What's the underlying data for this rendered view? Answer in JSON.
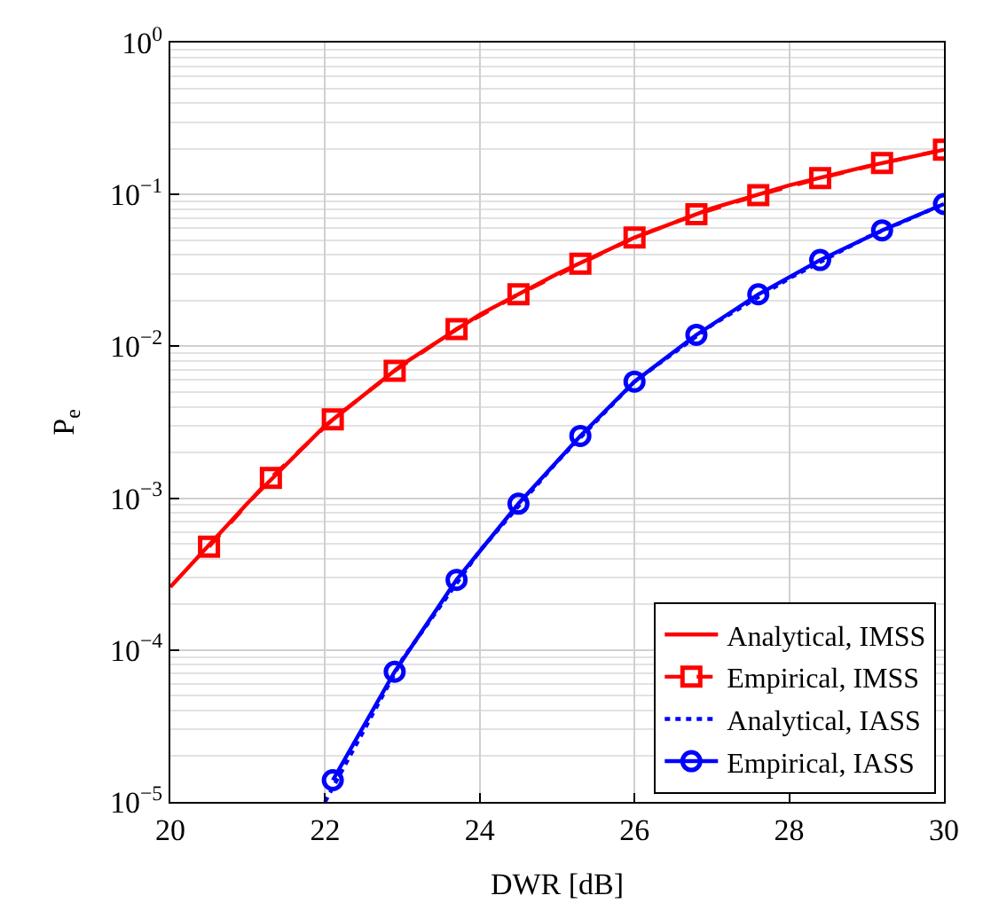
{
  "chart_data": {
    "type": "line",
    "xlabel": "DWR [dB]",
    "ylabel": "P$_{e}$",
    "log": "y",
    "grid": true,
    "legend": "bottom right",
    "xlim": [
      20,
      30
    ],
    "xticks": [
      20,
      22,
      24,
      26,
      28,
      30
    ],
    "ylim": [
      1e-05,
      1
    ],
    "yticks": [
      {
        "value": 1e-05,
        "label": "10$^{−5}$"
      },
      {
        "value": 0.0001,
        "label": "10$^{−4}$"
      },
      {
        "value": 0.001,
        "label": "10$^{−3}$"
      },
      {
        "value": 0.01,
        "label": "10$^{−2}$"
      },
      {
        "value": 0.1,
        "label": "10$^{−1}$"
      },
      {
        "value": 1,
        "label": "10$^{0}$"
      }
    ],
    "series": [
      {
        "name": "Analytical, IMSS",
        "color": "#ff0000",
        "line_style": "solid",
        "marker": "none",
        "x": [
          20,
          21,
          22,
          23,
          24,
          25,
          26,
          27,
          28,
          29,
          30
        ],
        "values": [
          0.00026,
          0.00093,
          0.003,
          0.0076,
          0.0162,
          0.03,
          0.052,
          0.081,
          0.115,
          0.153,
          0.197
        ]
      },
      {
        "name": "Empirical, IMSS",
        "color": "#ff0000",
        "line_style": "dashed",
        "marker": "square",
        "x": [
          20.5,
          21.3,
          22.1,
          22.9,
          23.7,
          24.5,
          25.3,
          26.0,
          26.8,
          27.6,
          28.4,
          29.2,
          30
        ],
        "values": [
          0.00048,
          0.00136,
          0.0033,
          0.0069,
          0.013,
          0.022,
          0.035,
          0.052,
          0.074,
          0.099,
          0.128,
          0.161,
          0.197
        ]
      },
      {
        "name": "Analytical, IASS",
        "color": "#0000ff",
        "line_style": "dotted",
        "marker": "none",
        "x": [
          22,
          23,
          24,
          25,
          26,
          27,
          28,
          29,
          30
        ],
        "values": [
          1e-05,
          8.7e-05,
          0.00045,
          0.00174,
          0.00586,
          0.0138,
          0.028,
          0.052,
          0.0865
        ]
      },
      {
        "name": "Empirical, IASS",
        "color": "#0000ff",
        "line_style": "solid",
        "marker": "circle",
        "x": [
          22.1,
          22.9,
          23.7,
          24.5,
          25.3,
          26.0,
          26.8,
          27.6,
          28.4,
          29.2,
          30
        ],
        "values": [
          1.39e-05,
          7.2e-05,
          0.00029,
          0.00092,
          0.00257,
          0.00586,
          0.0119,
          0.022,
          0.037,
          0.058,
          0.0865
        ]
      }
    ]
  }
}
